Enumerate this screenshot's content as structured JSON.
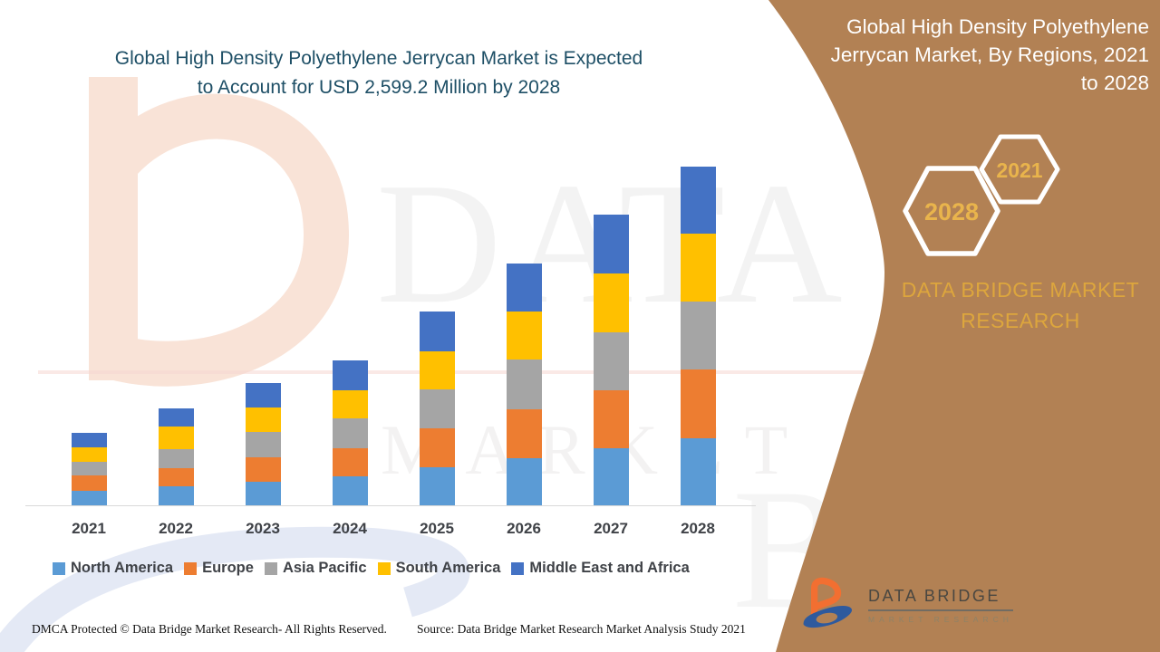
{
  "headline": {
    "line1": "Global High Density Polyethylene Jerrycan Market is Expected",
    "line2": "to Account for USD 2,599.2 Million by 2028",
    "color": "#1e4f66"
  },
  "panel": {
    "background": "#b28154",
    "title_lines": [
      "Global High Density Polyethylene",
      "Jerrycan Market, By Regions, 2021",
      "to 2028"
    ],
    "title_color": "#ffffff",
    "hexagons": [
      {
        "label": "2028"
      },
      {
        "label": "2021"
      }
    ],
    "hex_text_color": "#e9b44c",
    "hex_outline_color": "#ffffff",
    "brand_text": "DATA BRIDGE MARKET RESEARCH",
    "brand_color": "#dda63d"
  },
  "logo": {
    "line1": "DATA BRIDGE",
    "line2": "MARKET RESEARCH",
    "orange": "#f26f31",
    "blue": "#2e5a9e"
  },
  "watermark": {
    "line1": "DATA BRIDGE",
    "line2": "MARKET RESEARCH",
    "corner": "BR"
  },
  "footer": {
    "left": "DMCA Protected © Data Bridge Market Research- All Rights Reserved.",
    "right": "Source: Data Bridge Market Research Market Analysis Study 2021"
  },
  "chart_data": {
    "type": "bar",
    "stacked": true,
    "unit": "USD Million",
    "title": "Global High Density Polyethylene Jerrycan Market, By Regions, 2021 to 2028",
    "xlabel": "",
    "ylabel": "",
    "y_axis_visible": false,
    "gridlines": false,
    "legend_position": "bottom",
    "ylim": [
      0,
      2599.2
    ],
    "categories": [
      "2021",
      "2022",
      "2023",
      "2024",
      "2025",
      "2026",
      "2027",
      "2028"
    ],
    "series": [
      {
        "name": "North America",
        "color": "#5b9bd5",
        "values": [
          111,
          146,
          181,
          222,
          292,
          361,
          438,
          514
        ]
      },
      {
        "name": "Europe",
        "color": "#ed7d31",
        "values": [
          118,
          139,
          188,
          215,
          299,
          375,
          445,
          528
        ]
      },
      {
        "name": "Asia Pacific",
        "color": "#a5a5a5",
        "values": [
          104,
          146,
          194,
          229,
          299,
          382,
          445,
          521
        ]
      },
      {
        "name": "South America",
        "color": "#ffc000",
        "values": [
          111,
          174,
          188,
          216,
          292,
          368,
          452,
          522
        ]
      },
      {
        "name": "Middle East and Africa",
        "color": "#4472c4",
        "values": [
          112,
          139,
          188,
          230,
          306,
          368,
          452,
          514.2
        ]
      }
    ]
  }
}
